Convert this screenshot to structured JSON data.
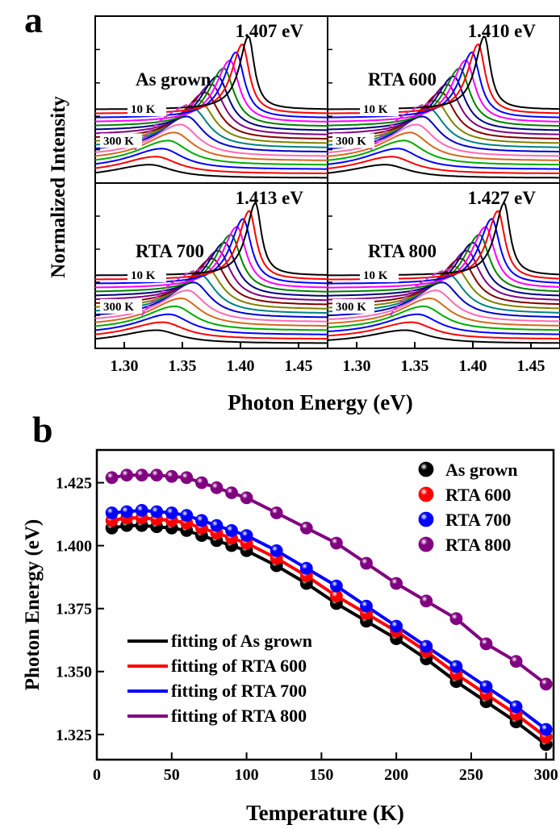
{
  "panel_a": {
    "label": "a",
    "ylabel": "Normalized Intensity",
    "xlabel": "Photon Energy (eV)",
    "xticks": [
      "1.30",
      "1.35",
      "1.40",
      "1.45"
    ],
    "xlim": [
      1.275,
      1.475
    ],
    "temp_colors": [
      "#000000",
      "#ff0000",
      "#0000ff",
      "#ff00ff",
      "#008000",
      "#000080",
      "#800080",
      "#800000",
      "#808000",
      "#008080",
      "#0000cc",
      "#ff69b4",
      "#d2691e",
      "#00aa00",
      "#0000ff",
      "#ff0000",
      "#000000"
    ],
    "subplots": [
      {
        "name": "As grown",
        "peak_label": "1.407 eV",
        "peak": 1.407
      },
      {
        "name": "RTA 600",
        "peak_label": "1.410 eV",
        "peak": 1.41
      },
      {
        "name": "RTA 700",
        "peak_label": "1.413 eV",
        "peak": 1.413
      },
      {
        "name": "RTA 800",
        "peak_label": "1.427 eV",
        "peak": 1.427
      }
    ],
    "label_10k": "10 K",
    "label_300k": "300 K"
  },
  "chart_data": [
    {
      "type": "line",
      "panel": "a",
      "ylabel": "Normalized Intensity",
      "xlabel": "Photon Energy (eV)",
      "xlim": [
        1.275,
        1.475
      ],
      "series": [
        {
          "name": "As grown",
          "peak_eV_10K": 1.407
        },
        {
          "name": "RTA 600",
          "peak_eV_10K": 1.41
        },
        {
          "name": "RTA 700",
          "peak_eV_10K": 1.413
        },
        {
          "name": "RTA 800",
          "peak_eV_10K": 1.427
        }
      ],
      "temperature_range": [
        "10 K",
        "300 K"
      ]
    },
    {
      "type": "scatter",
      "panel": "b",
      "xlabel": "Temperature (K)",
      "ylabel": "Photon Energy (eV)",
      "xlim": [
        0,
        305
      ],
      "ylim": [
        1.315,
        1.438
      ],
      "xticks": [
        "0",
        "50",
        "100",
        "150",
        "200",
        "250",
        "300"
      ],
      "yticks": [
        "1.325",
        "1.350",
        "1.375",
        "1.400",
        "1.425"
      ],
      "x": [
        10,
        20,
        30,
        40,
        50,
        60,
        70,
        80,
        90,
        100,
        120,
        140,
        160,
        180,
        200,
        220,
        240,
        260,
        280,
        300
      ],
      "series": [
        {
          "name": "As grown",
          "color": "#000000",
          "values": [
            1.407,
            1.408,
            1.408,
            1.4075,
            1.407,
            1.406,
            1.404,
            1.402,
            1.4,
            1.398,
            1.392,
            1.385,
            1.377,
            1.37,
            1.363,
            1.355,
            1.346,
            1.338,
            1.33,
            1.321
          ]
        },
        {
          "name": "RTA 600",
          "color": "#ff0000",
          "values": [
            1.41,
            1.411,
            1.411,
            1.4105,
            1.41,
            1.409,
            1.407,
            1.405,
            1.403,
            1.401,
            1.395,
            1.388,
            1.38,
            1.373,
            1.366,
            1.358,
            1.349,
            1.341,
            1.333,
            1.324
          ]
        },
        {
          "name": "RTA 700",
          "color": "#0000ff",
          "values": [
            1.413,
            1.4135,
            1.414,
            1.4135,
            1.413,
            1.412,
            1.41,
            1.408,
            1.406,
            1.404,
            1.398,
            1.391,
            1.384,
            1.376,
            1.368,
            1.36,
            1.352,
            1.344,
            1.336,
            1.327
          ]
        },
        {
          "name": "RTA 800",
          "color": "#800080",
          "values": [
            1.427,
            1.428,
            1.428,
            1.428,
            1.4275,
            1.427,
            1.425,
            1.423,
            1.421,
            1.419,
            1.413,
            1.407,
            1.401,
            1.393,
            1.385,
            1.378,
            1.371,
            1.361,
            1.354,
            1.345
          ]
        }
      ],
      "fit_legend": [
        "fitting of As grown",
        "fitting of RTA 600",
        "fitting of RTA 700",
        "fitting of RTA 800"
      ],
      "legend_position": "top-right (markers), bottom-left (fits)"
    }
  ],
  "panel_b": {
    "label": "b"
  }
}
